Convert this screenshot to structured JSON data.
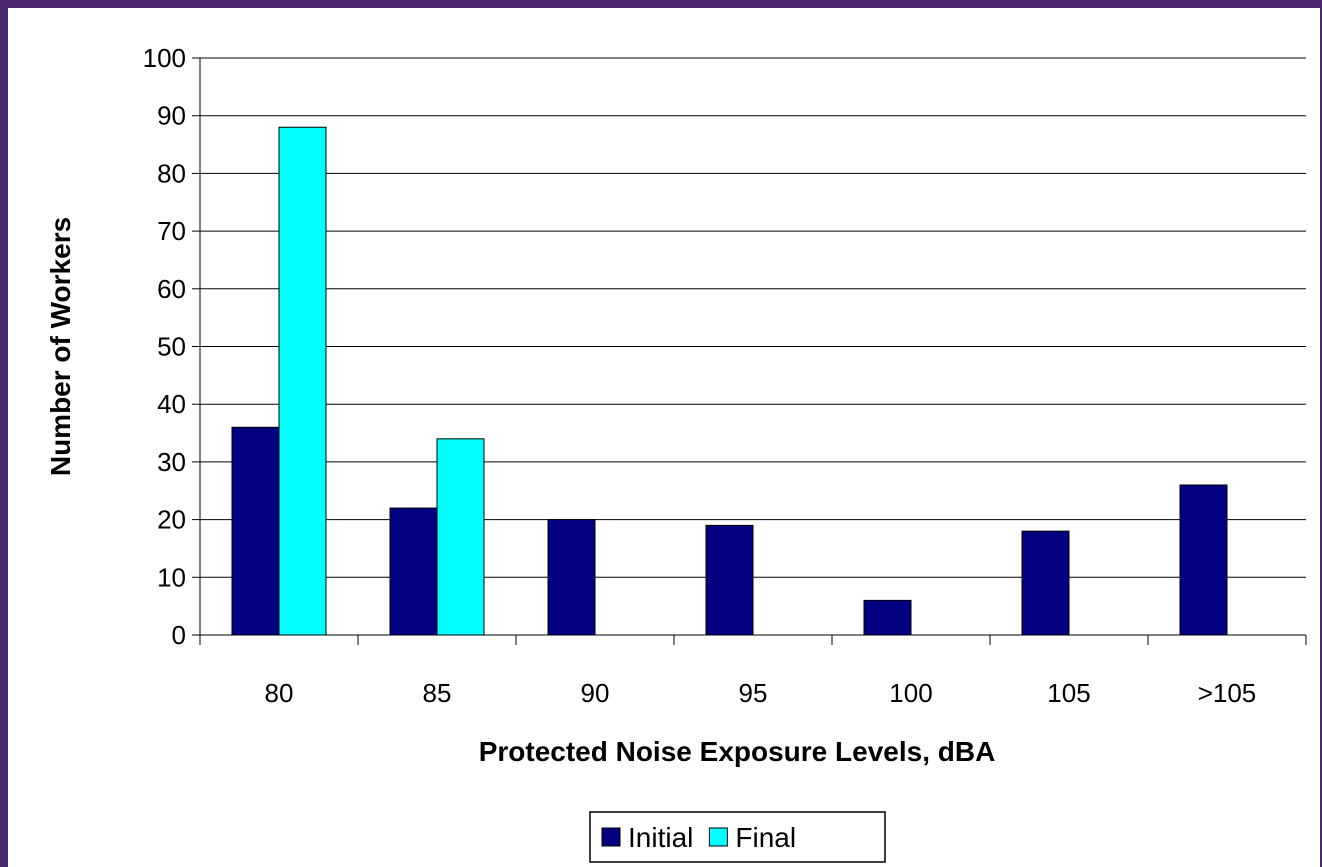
{
  "chart_data": {
    "type": "bar",
    "title": "",
    "xlabel": "Protected Noise Exposure Levels, dBA",
    "ylabel": "Number of Workers",
    "categories": [
      "80",
      "85",
      "90",
      "95",
      "100",
      "105",
      ">105"
    ],
    "series": [
      {
        "name": "Initial",
        "color": "#000080",
        "values": [
          36,
          22,
          20,
          19,
          6,
          18,
          26
        ]
      },
      {
        "name": "Final",
        "color": "#00ffff",
        "values": [
          88,
          34,
          0,
          0,
          0,
          0,
          0
        ]
      }
    ],
    "ylim": [
      0,
      100
    ],
    "yticks": [
      0,
      10,
      20,
      30,
      40,
      50,
      60,
      70,
      80,
      90,
      100
    ],
    "grid": true,
    "legend_position": "bottom-center"
  }
}
